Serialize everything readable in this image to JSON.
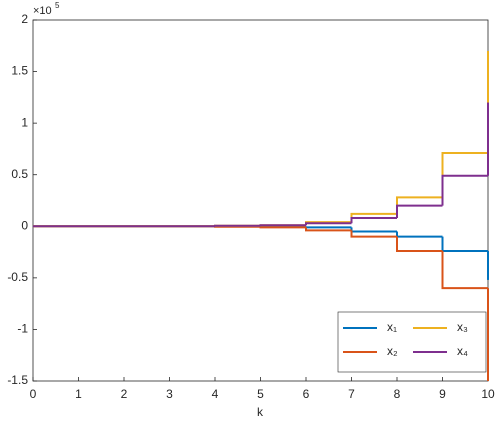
{
  "chart_data": {
    "type": "stairs",
    "xlabel": "k",
    "y_multiplier": "×10",
    "y_multiplier_power": "5",
    "x": [
      0,
      1,
      2,
      3,
      4,
      5,
      6,
      7,
      8,
      9,
      10
    ],
    "series": [
      {
        "name": "x₁",
        "color": "#0072BD",
        "values": [
          0,
          0,
          0,
          0,
          0,
          0,
          -0.01,
          -0.05,
          -0.1,
          -0.24,
          -0.52
        ]
      },
      {
        "name": "x₂",
        "color": "#D95319",
        "values": [
          0,
          0,
          0,
          0,
          -0.005,
          -0.01,
          -0.04,
          -0.1,
          -0.24,
          -0.6,
          -1.5
        ]
      },
      {
        "name": "x₃",
        "color": "#EDB120",
        "values": [
          0,
          0,
          0,
          0,
          0.005,
          0.01,
          0.04,
          0.12,
          0.28,
          0.71,
          1.7
        ]
      },
      {
        "name": "x₄",
        "color": "#7E2F8E",
        "values": [
          0,
          0,
          0,
          0,
          0.005,
          0.01,
          0.03,
          0.08,
          0.2,
          0.49,
          1.2
        ]
      }
    ],
    "xlim": [
      0,
      10
    ],
    "xticks": [
      0,
      1,
      2,
      3,
      4,
      5,
      6,
      7,
      8,
      9,
      10
    ],
    "ylim": [
      -1.5,
      2
    ],
    "yticks": [
      -1.5,
      -1,
      -0.5,
      0,
      0.5,
      1,
      1.5,
      2
    ],
    "legend": "bottom-right"
  }
}
